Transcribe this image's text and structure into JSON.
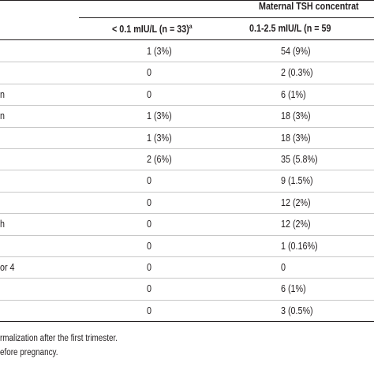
{
  "table": {
    "super_header": "Maternal TSH concentrat",
    "columns": [
      "< 0.1 mIU/L (n = 33)",
      "0.1-2.5 mIU/L (n = 59"
    ],
    "column_superscripts": [
      "a",
      ""
    ],
    "rows": [
      {
        "label": "",
        "c1": "1 (3%)",
        "c2": "54 (9%)"
      },
      {
        "label": "",
        "c1": "0",
        "c2": "2 (0.3%)"
      },
      {
        "label": "n",
        "c1": "0",
        "c2": "6 (1%)"
      },
      {
        "label": "n",
        "c1": "1 (3%)",
        "c2": "18 (3%)"
      },
      {
        "label": "",
        "c1": "1 (3%)",
        "c2": "18 (3%)"
      },
      {
        "label": "",
        "c1": "2 (6%)",
        "c2": "35 (5.8%)"
      },
      {
        "label": "",
        "c1": "0",
        "c2": "9 (1.5%)"
      },
      {
        "label": "",
        "c1": "0",
        "c2": "12 (2%)"
      },
      {
        "label": "h",
        "c1": "0",
        "c2": "12 (2%)"
      },
      {
        "label": "",
        "c1": "0",
        "c2": "1 (0.16%)"
      },
      {
        "label": "or 4",
        "c1": "0",
        "c2": "0"
      },
      {
        "label": "",
        "c1": "0",
        "c2": "6 (1%)"
      },
      {
        "label": "",
        "c1": "0",
        "c2": "3 (0.5%)"
      }
    ]
  },
  "footnotes": [
    "rmalization after the first trimester.",
    "efore pregnancy."
  ]
}
